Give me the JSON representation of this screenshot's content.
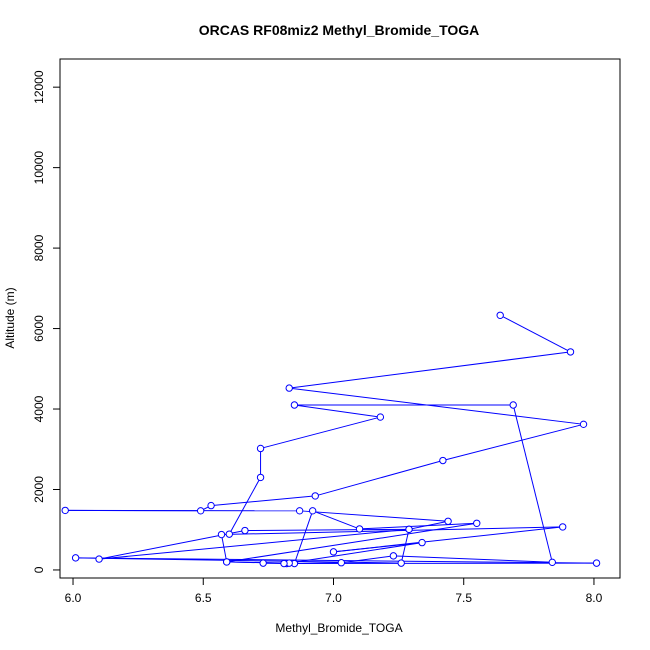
{
  "chart_data": {
    "type": "line",
    "title": "ORCAS RF08miz2 Methyl_Bromide_TOGA",
    "xlabel": "Methyl_Bromide_TOGA",
    "ylabel": "Altitude (m)",
    "xlim": [
      5.95,
      8.1
    ],
    "ylim": [
      -200,
      12700
    ],
    "xticks": [
      "6.0",
      "6.5",
      "7.0",
      "7.5",
      "8.0"
    ],
    "xtick_values": [
      6.0,
      6.5,
      7.0,
      7.5,
      8.0
    ],
    "yticks": [
      "0",
      "2000",
      "4000",
      "6000",
      "8000",
      "10000",
      "12000"
    ],
    "ytick_values": [
      0,
      2000,
      4000,
      6000,
      8000,
      10000,
      12000
    ],
    "grid": false,
    "legend": "none",
    "marker": "open-circle",
    "colors": {
      "series": "#0000ff",
      "axis": "#000000"
    },
    "series": [
      {
        "x": [
          7.64,
          7.91,
          6.83,
          7.96,
          7.42,
          6.93,
          6.53,
          6.49,
          5.97,
          6.87,
          7.44,
          7.29,
          6.66,
          6.1,
          7.29,
          7.26,
          6.01,
          8.01,
          6.82,
          7.34,
          7.0,
          7.88,
          6.57,
          6.59,
          6.85,
          6.92,
          7.1,
          7.55,
          6.59,
          6.83,
          6.73,
          6.81,
          7.03,
          7.23,
          7.84,
          7.69,
          6.85,
          7.18,
          6.72,
          6.72,
          6.6
        ],
        "y": [
          6330,
          5420,
          4520,
          3620,
          2720,
          1840,
          1600,
          1470,
          1480,
          1470,
          1210,
          1010,
          980,
          270,
          1010,
          170,
          300,
          170,
          160,
          680,
          450,
          1070,
          880,
          200,
          160,
          1470,
          1020,
          1160,
          200,
          170,
          170,
          160,
          180,
          350,
          190,
          4100,
          4100,
          3800,
          3020,
          2300,
          890
        ]
      }
    ]
  }
}
